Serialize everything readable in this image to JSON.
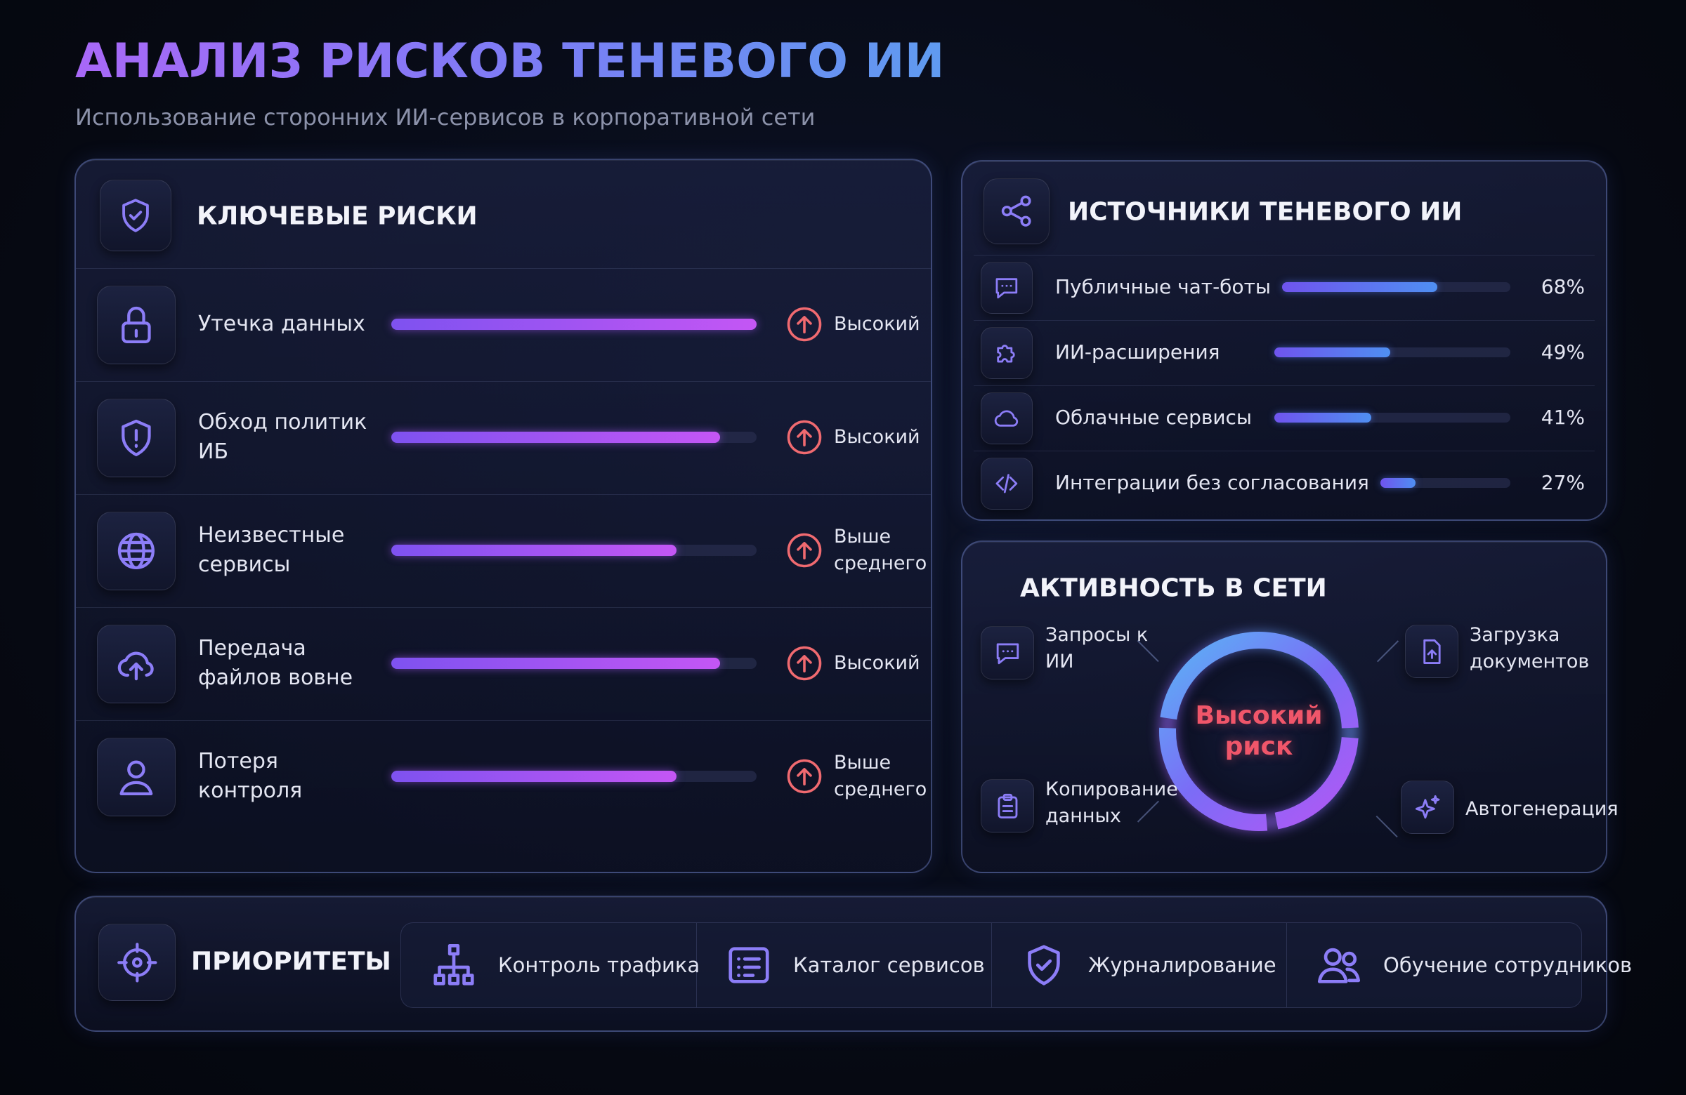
{
  "header": {
    "title": "АНАЛИЗ РИСКОВ ТЕНЕВОГО ИИ",
    "subtitle": "Использование сторонних ИИ-сервисов в корпоративной сети"
  },
  "risks": {
    "title": "КЛЮЧЕВЫЕ РИСКИ",
    "items": [
      {
        "name": "Утечка данных",
        "level": 100,
        "rating": "Высокий"
      },
      {
        "name": "Обход политик ИБ",
        "level": 90,
        "rating": "Высокий"
      },
      {
        "name": "Неизвестные сервисы",
        "level": 78,
        "rating": "Выше среднего"
      },
      {
        "name": "Передача файлов вовне",
        "level": 90,
        "rating": "Высокий"
      },
      {
        "name": "Потеря контроля",
        "level": 78,
        "rating": "Выше среднего"
      }
    ]
  },
  "sources": {
    "title": "ИСТОЧНИКИ ТЕНЕВОГО ИИ",
    "items": [
      {
        "name": "Публичные чат-боты",
        "value": 68,
        "label": "68%"
      },
      {
        "name": "ИИ-расширения",
        "value": 49,
        "label": "49%"
      },
      {
        "name": "Облачные сервисы",
        "value": 41,
        "label": "41%"
      },
      {
        "name": "Интеграции без согласования",
        "value": 27,
        "label": "27%"
      }
    ]
  },
  "activity": {
    "title": "АКТИВНОСТЬ В СЕТИ",
    "center": "Высокий риск",
    "items": [
      "Запросы к ИИ",
      "Загрузка документов",
      "Копирование данных",
      "Автогенерация"
    ]
  },
  "priorities": {
    "title": "ПРИОРИТЕТЫ",
    "items": [
      "Контроль трафика",
      "Каталог сервисов",
      "Журналирование",
      "Обучение сотрудников"
    ]
  }
}
